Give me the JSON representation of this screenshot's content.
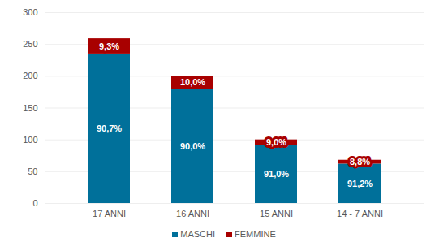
{
  "chart_data": {
    "type": "bar",
    "stacked": true,
    "grid": true,
    "legend": "bottom",
    "categories": [
      "17 ANNI",
      "16 ANNI",
      "15 ANNI",
      "14 - 7 ANNI"
    ],
    "series": [
      {
        "name": "MASCHI",
        "color": "#00709a",
        "values": [
          235,
          180,
          91,
          62
        ],
        "percent_labels": [
          "90,7%",
          "90,0%",
          "91,0%",
          "91,2%"
        ]
      },
      {
        "name": "FEMMINE",
        "color": "#a80000",
        "values": [
          24,
          20,
          9,
          6
        ],
        "percent_labels": [
          "9,3%",
          "10,0%",
          "9,0%",
          "8,8%"
        ]
      }
    ],
    "ylim": [
      0,
      300
    ],
    "yticks": [
      0,
      50,
      100,
      150,
      200,
      250,
      300
    ]
  }
}
